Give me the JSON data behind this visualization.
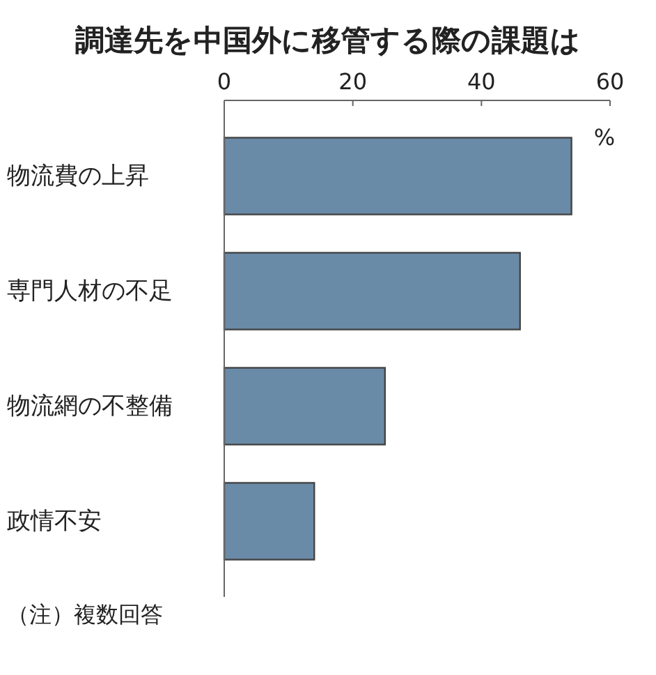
{
  "chart_data": {
    "type": "bar",
    "orientation": "horizontal",
    "title": "調達先を中国外に移管する際の課題は",
    "xlabel": "%",
    "categories": [
      "物流費の上昇",
      "専門人材の不足",
      "物流網の不整備",
      "政情不安"
    ],
    "values": [
      54,
      46,
      25,
      14
    ],
    "color": "#6a8ba8",
    "xlim": [
      0,
      60
    ],
    "xticks": [
      0,
      20,
      40,
      60
    ],
    "annotations": [
      "（注）複数回答"
    ]
  }
}
